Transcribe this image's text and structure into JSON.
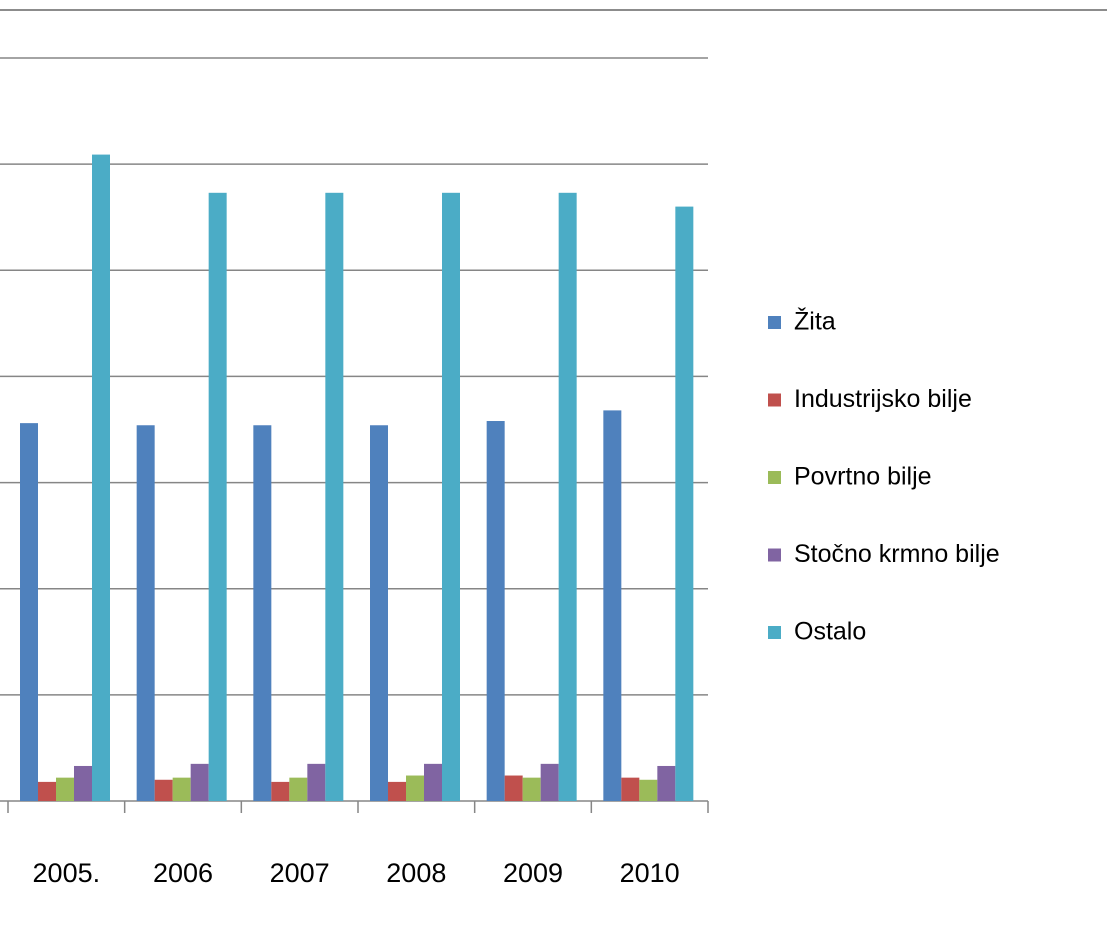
{
  "chart_data": {
    "type": "bar",
    "categories": [
      "2005.",
      "2006",
      "2007",
      "2008",
      "2009",
      "2010"
    ],
    "series": [
      {
        "name": "Žita",
        "color": "#4f81bd",
        "values": [
          3.56,
          3.54,
          3.54,
          3.54,
          3.58,
          3.68
        ]
      },
      {
        "name": "Industrijsko bilje",
        "color": "#c0504d",
        "values": [
          0.18,
          0.2,
          0.18,
          0.18,
          0.24,
          0.22
        ]
      },
      {
        "name": "Povrtno bilje",
        "color": "#9bbb59",
        "values": [
          0.22,
          0.22,
          0.22,
          0.24,
          0.22,
          0.2
        ]
      },
      {
        "name": "Stočno krmno bilje",
        "color": "#8064a2",
        "values": [
          0.33,
          0.35,
          0.35,
          0.35,
          0.35,
          0.33
        ]
      },
      {
        "name": "Ostalo",
        "color": "#4bacc6",
        "values": [
          6.09,
          5.73,
          5.73,
          5.73,
          5.73,
          5.6
        ]
      }
    ],
    "ylim": [
      0,
      7
    ],
    "yticks": [
      0,
      1,
      2,
      3,
      4,
      5,
      6,
      7
    ],
    "grid": true,
    "legend": "right"
  }
}
